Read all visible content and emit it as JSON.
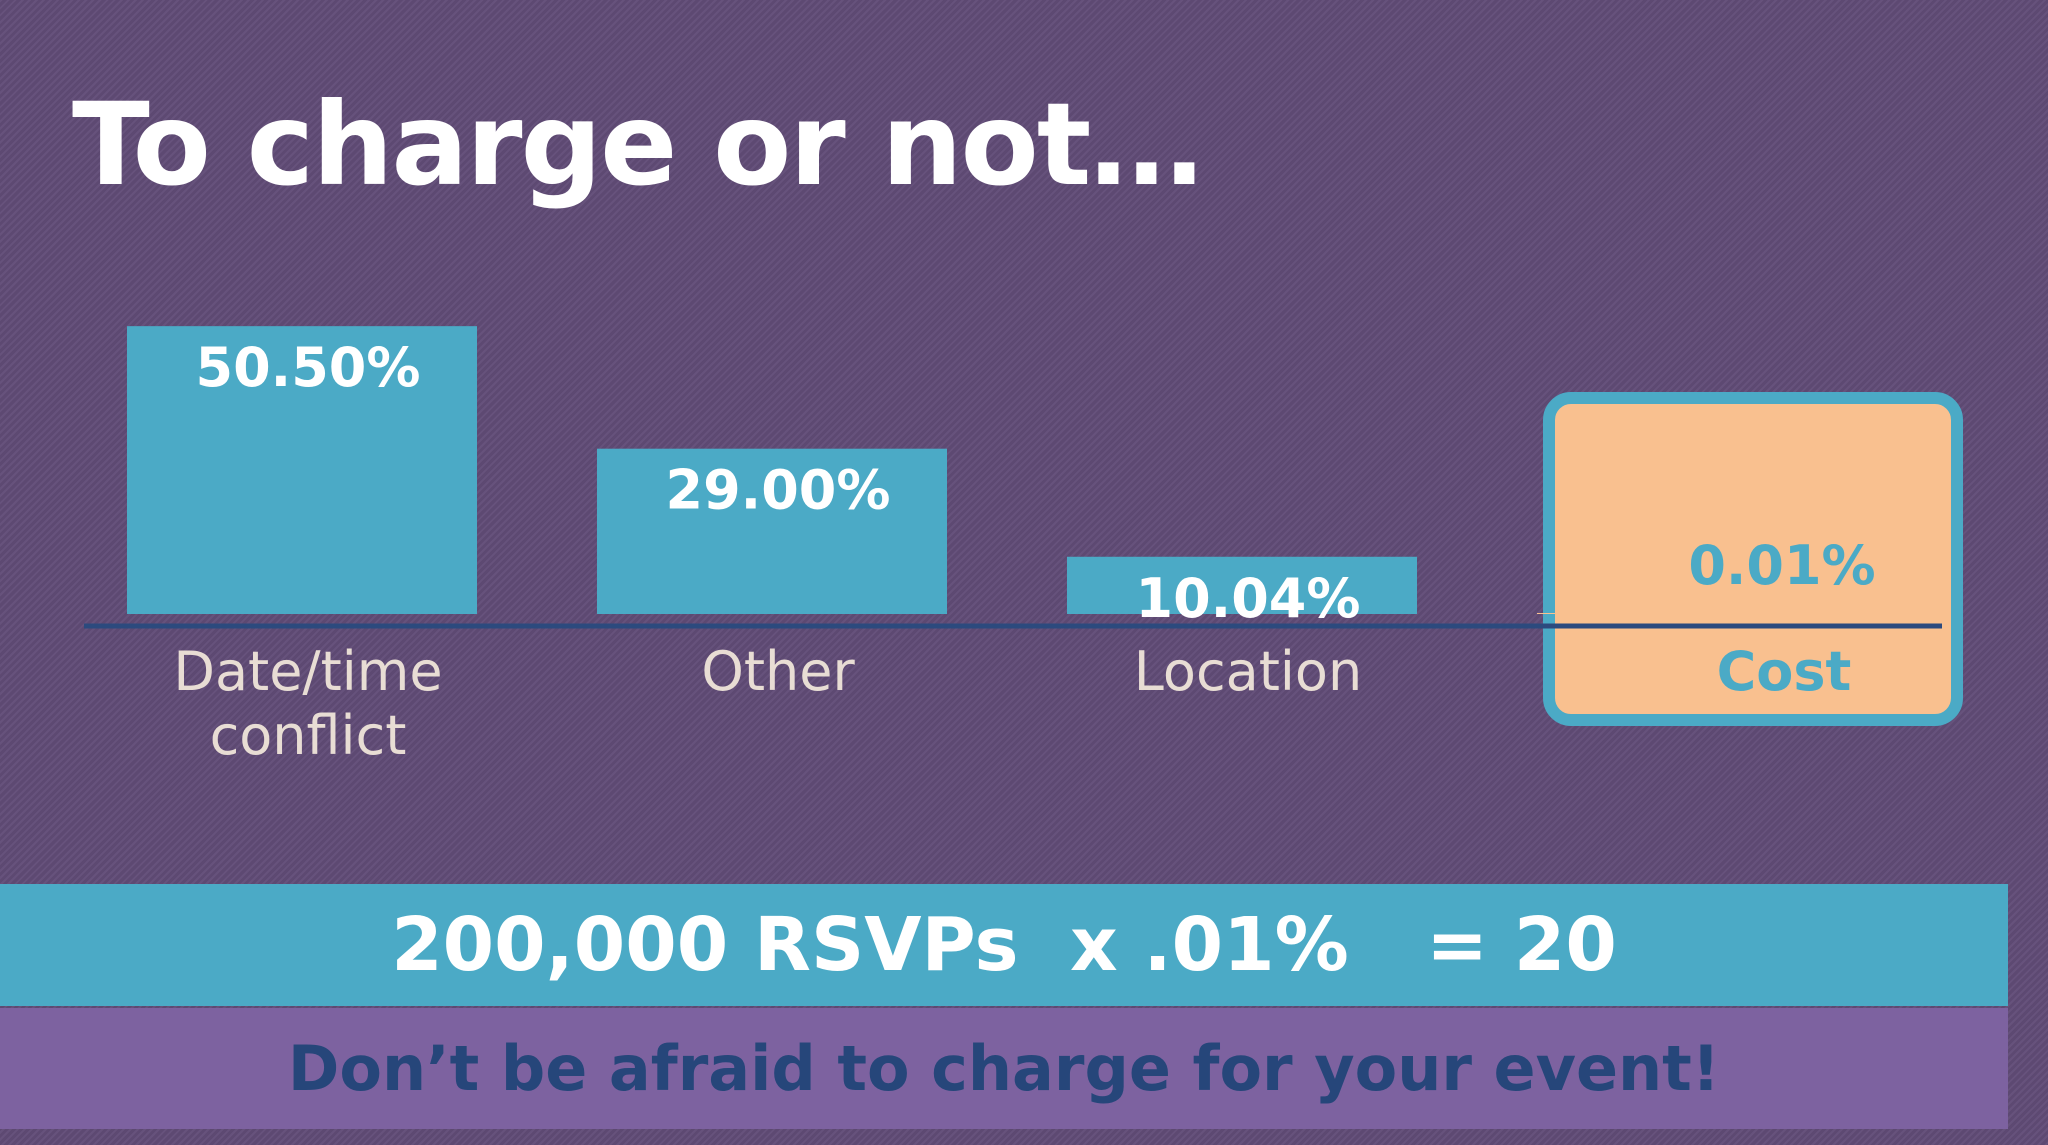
{
  "title": "To charge or not…",
  "chart_data": {
    "type": "bar",
    "title": "",
    "categories": [
      "Date/time\nconflict",
      "Other",
      "Location",
      "Cost"
    ],
    "values": [
      50.5,
      29.0,
      10.04,
      0.01
    ],
    "value_labels": [
      "50.50%",
      "29.00%",
      "10.04%",
      "0.01%"
    ],
    "highlighted_category": "Cost",
    "xlabel": "",
    "ylabel": "",
    "grid": false,
    "legend": "none"
  },
  "colors": {
    "bar": "#4baac6",
    "highlight_fill": "#f9c08f",
    "highlight_border": "#4baac6",
    "baseline": "#2c4a7e",
    "value_text": "#ffffff",
    "highlight_value_text": "#4baac6",
    "category_text": "#e8ddd4"
  },
  "formula": "200,000 RSVPs  x .01%   = 20",
  "tagline": "Don’t be afraid to charge for your event!"
}
